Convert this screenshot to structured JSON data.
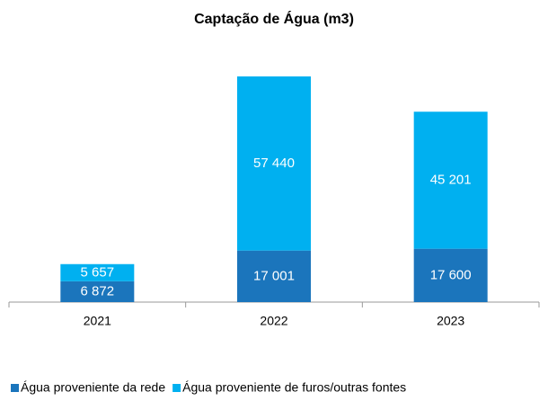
{
  "chart_data": {
    "type": "stacked_bar",
    "title": "Captação de Água (m3)",
    "categories": [
      "2021",
      "2022",
      "2023"
    ],
    "series": [
      {
        "name": "Água proveniente da rede",
        "color": "#1b75bc",
        "values": [
          6872,
          17001,
          17600
        ],
        "value_labels": [
          "6 872",
          "17 001",
          "17 600"
        ]
      },
      {
        "name": "Água proveniente de furos/outras fontes",
        "color": "#00b0f0",
        "values": [
          5657,
          57440,
          45201
        ],
        "value_labels": [
          "5 657",
          "57 440",
          "45 201"
        ]
      }
    ],
    "legend": "bottom"
  }
}
